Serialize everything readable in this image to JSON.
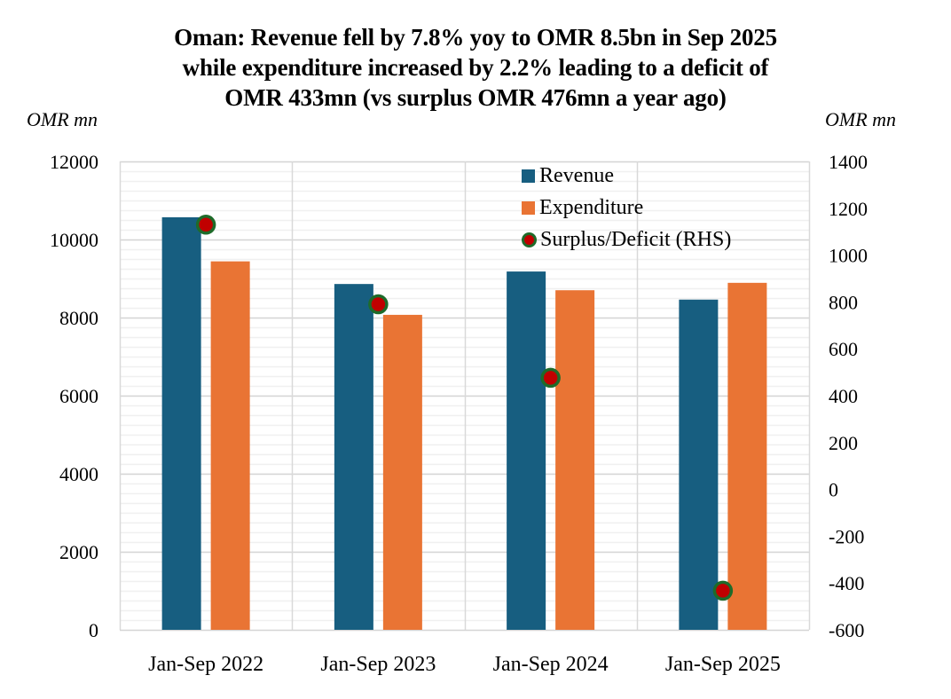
{
  "chart_data": {
    "type": "bar",
    "title_lines": [
      "Oman: Revenue fell by 7.8% yoy to OMR 8.5bn in Sep 2025",
      "while expenditure increased by 2.2% leading to a deficit of",
      "OMR 433mn (vs surplus OMR 476mn a year ago)"
    ],
    "ylabel_left": "OMR mn",
    "ylabel_right": "OMR mn",
    "xlabel": "",
    "categories": [
      "Jan-Sep 2022",
      "Jan-Sep 2023",
      "Jan-Sep 2024",
      "Jan-Sep 2025"
    ],
    "series": [
      {
        "name": "Revenue",
        "type": "bar",
        "axis": "left",
        "color": "#175E80",
        "values": [
          10570,
          8860,
          9180,
          8460
        ]
      },
      {
        "name": "Expenditure",
        "type": "bar",
        "axis": "left",
        "color": "#E97434",
        "values": [
          9440,
          8070,
          8700,
          8890
        ]
      },
      {
        "name": "Surplus/Deficit (RHS)",
        "type": "scatter",
        "axis": "right",
        "color": "#C00000",
        "edge_color": "#1E6B2A",
        "values": [
          1130,
          790,
          476,
          -433
        ]
      }
    ],
    "ylim_left": [
      0,
      12000
    ],
    "yticks_left": [
      0,
      2000,
      4000,
      6000,
      8000,
      10000,
      12000
    ],
    "ylim_right": [
      -600,
      1400
    ],
    "yticks_right": [
      -600,
      -400,
      -200,
      0,
      200,
      400,
      600,
      800,
      1000,
      1200,
      1400
    ],
    "grid": true,
    "legend_position": "top-right"
  }
}
